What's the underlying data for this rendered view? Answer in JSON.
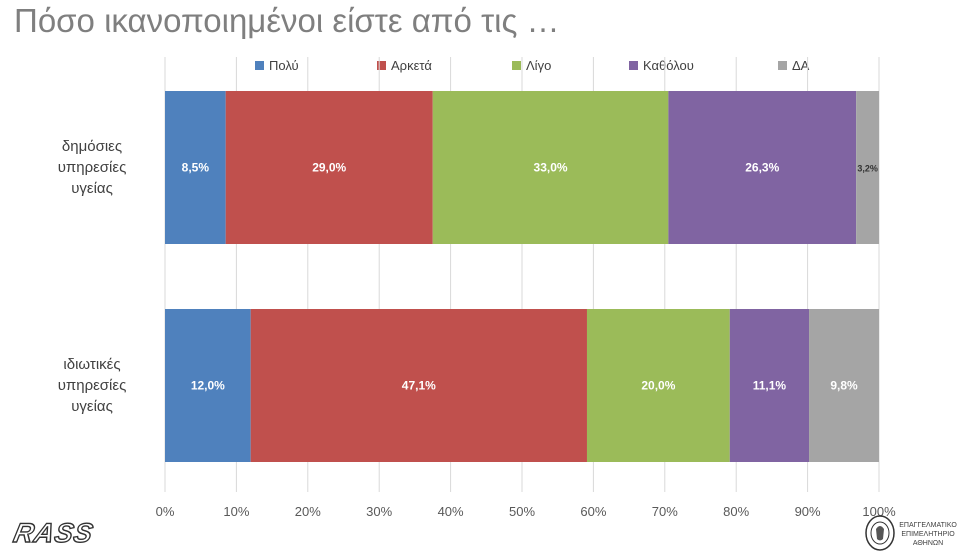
{
  "title": "Πόσο ικανοποιημένοι είστε από τις …",
  "chart_data": {
    "type": "bar",
    "orientation": "horizontal",
    "stacked": "percent",
    "categories": [
      "δημόσιες υπηρεσίες υγείας",
      "ιδιωτικές υπηρεσίες υγείας"
    ],
    "category_label_lines": [
      [
        "δημόσιες",
        "υπηρεσίες",
        "υγείας"
      ],
      [
        "ιδιωτικές",
        "υπηρεσίες",
        "υγείας"
      ]
    ],
    "series": [
      {
        "name": "Πολύ",
        "values": [
          8.5,
          12.0
        ],
        "labels": [
          "8,5%",
          "12,0%"
        ],
        "color": "#4f81bd"
      },
      {
        "name": "Αρκετά",
        "values": [
          29.0,
          47.1
        ],
        "labels": [
          "29,0%",
          "47,1%"
        ],
        "color": "#c0504d"
      },
      {
        "name": "Λίγο",
        "values": [
          33.0,
          20.0
        ],
        "labels": [
          "33,0%",
          "20,0%"
        ],
        "color": "#9bbb59"
      },
      {
        "name": "Καθόλου",
        "values": [
          26.3,
          11.1
        ],
        "labels": [
          "26,3%",
          "11,1%"
        ],
        "color": "#8064a2"
      },
      {
        "name": "ΔΑ",
        "values": [
          3.2,
          9.8
        ],
        "labels": [
          "3,2%",
          "9,8%"
        ],
        "color": "#a5a5a5"
      }
    ],
    "xlim": [
      0,
      100
    ],
    "x_ticks": [
      "0%",
      "10%",
      "20%",
      "30%",
      "40%",
      "50%",
      "60%",
      "70%",
      "80%",
      "90%",
      "100%"
    ],
    "legend_position": "top",
    "grid": true
  },
  "logos": {
    "left": "RASS",
    "right_lines": [
      "ΕΠΑΓΓΕΛΜΑΤΙΚΟ",
      "ΕΠΙΜΕΛΗΤΗΡΙΟ",
      "ΑΘΗΝΩΝ"
    ]
  }
}
